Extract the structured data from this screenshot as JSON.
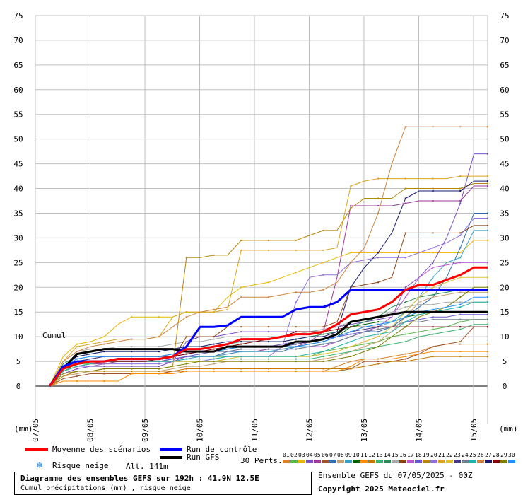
{
  "chart_data": {
    "type": "line",
    "cumul_label": "Cumul",
    "unit_label": "(mm)",
    "ylim": [
      0,
      75
    ],
    "yticks": [
      0,
      5,
      10,
      15,
      20,
      25,
      30,
      35,
      40,
      45,
      50,
      55,
      60,
      65,
      70,
      75
    ],
    "xlim_days": [
      7,
      15
    ],
    "xticks": [
      "07/05",
      "08/05",
      "09/05",
      "10/05",
      "11/05",
      "12/05",
      "13/05",
      "14/05",
      "15/05"
    ],
    "x_steps_hours": [
      0,
      6,
      12,
      18,
      24,
      30,
      36,
      42,
      48,
      54,
      60,
      66,
      72,
      78,
      84,
      90,
      96,
      102,
      108,
      114,
      120,
      126,
      132,
      138,
      144,
      150,
      156,
      162,
      168,
      174,
      180,
      186,
      192
    ],
    "control_run": [
      0,
      4,
      5,
      5,
      5,
      5.5,
      5.5,
      5.5,
      5.5,
      6,
      8,
      12,
      12,
      12.3,
      14,
      14,
      14,
      14,
      15.5,
      16,
      16,
      17,
      19.5,
      19.5,
      19.5,
      19.5,
      19.5,
      19.5,
      19.5,
      19.5,
      19.5,
      19.5,
      19.5
    ],
    "gfs_run": [
      0,
      3.5,
      6.5,
      7,
      7.5,
      7.5,
      7.5,
      7.5,
      7.5,
      7.5,
      7,
      7,
      7,
      8,
      8,
      8,
      8,
      8,
      9,
      9,
      9.5,
      10.5,
      13,
      13.5,
      14,
      14.5,
      15,
      15,
      15,
      15,
      15,
      15,
      15
    ],
    "mean_run": [
      0,
      3.5,
      4.5,
      5,
      5,
      5.5,
      5.5,
      5.5,
      5.5,
      6,
      7.5,
      7.5,
      8,
      8.5,
      9.5,
      9.5,
      9.5,
      10,
      10.5,
      10.5,
      11,
      12.5,
      14.5,
      15,
      15.5,
      17,
      19.5,
      20.5,
      20.5,
      21.5,
      22.5,
      24,
      24
    ],
    "perturbations": [
      {
        "name": "01",
        "color": "#d9822b",
        "values": [
          0,
          2,
          2.5,
          3,
          3,
          3,
          3,
          3,
          3,
          3,
          3,
          3,
          3,
          3,
          3,
          3,
          3,
          3,
          3,
          3,
          3,
          4,
          5,
          5.5,
          5.5,
          6,
          6.5,
          7,
          8,
          8.5,
          8.5,
          8.5,
          8.5
        ]
      },
      {
        "name": "02",
        "color": "#59b84a",
        "values": [
          0,
          3,
          4.5,
          4.5,
          4.5,
          5,
          5,
          5,
          5,
          5.5,
          6,
          6,
          6,
          6,
          6,
          6,
          6,
          6,
          6,
          6,
          7,
          7.5,
          8,
          8.5,
          9,
          10,
          10.5,
          11,
          11.5,
          12,
          13,
          13.5,
          13.5
        ]
      },
      {
        "name": "03",
        "color": "#e6b800",
        "values": [
          0,
          6,
          8.5,
          9,
          10,
          12.5,
          14,
          14,
          14,
          14,
          15,
          15,
          15,
          18,
          20,
          20.5,
          21,
          22,
          23,
          24,
          25,
          26,
          27,
          27,
          27,
          27,
          27,
          27,
          27,
          27,
          27,
          29.5,
          29.5
        ]
      },
      {
        "name": "04",
        "color": "#7a4fc2",
        "values": [
          0,
          2.5,
          3.5,
          4,
          4,
          4,
          4,
          4,
          4,
          5,
          9,
          10,
          10,
          10.5,
          11,
          11,
          11,
          11,
          11,
          11,
          11.5,
          12,
          12.5,
          13,
          13.5,
          14,
          20,
          22,
          25,
          30,
          37,
          47,
          47
        ]
      },
      {
        "name": "05",
        "color": "#9b3a9b",
        "values": [
          0,
          3,
          4,
          4.5,
          4.5,
          5,
          5,
          5,
          5,
          5,
          6,
          6,
          6,
          6.5,
          7,
          7,
          7.5,
          7.5,
          8,
          9,
          11,
          22,
          36.5,
          36.5,
          36.5,
          36.5,
          37,
          37.5,
          37.5,
          37.5,
          37.5,
          40.5,
          40.5
        ]
      },
      {
        "name": "06",
        "color": "#a0522d",
        "values": [
          0,
          1.5,
          2,
          2.5,
          2.5,
          2.5,
          2.5,
          2.5,
          2.5,
          3,
          3,
          3,
          3,
          3,
          3,
          3,
          3,
          3,
          3,
          3,
          3,
          3,
          3.5,
          5,
          5,
          5,
          5.5,
          6.5,
          8,
          8.5,
          9,
          12,
          12
        ]
      },
      {
        "name": "07",
        "color": "#2f6fb0",
        "values": [
          0,
          4,
          5,
          5,
          5,
          5.5,
          5.5,
          5.5,
          5.5,
          5.5,
          6,
          6,
          6,
          7,
          7,
          7,
          7,
          7,
          8,
          8,
          8.5,
          9,
          10,
          11,
          11,
          12,
          14,
          16,
          18,
          22,
          28,
          35,
          35
        ]
      },
      {
        "name": "08",
        "color": "#c8a070",
        "values": [
          0,
          2,
          2.5,
          3,
          3,
          3,
          3,
          3,
          3,
          3.5,
          4,
          4,
          4.5,
          5,
          5,
          5,
          5,
          5,
          5,
          5,
          5.5,
          6,
          7,
          8,
          9,
          11,
          14,
          17,
          18,
          18.5,
          19,
          19,
          19
        ]
      },
      {
        "name": "09",
        "color": "#3aa0c8",
        "values": [
          0,
          3.5,
          5,
          5,
          5,
          5,
          5,
          5,
          5,
          5,
          5.5,
          6,
          6,
          6.5,
          7,
          7,
          7,
          7.5,
          8,
          8,
          8.5,
          9,
          10,
          11,
          12,
          13,
          15,
          18,
          22,
          25,
          26,
          31.5,
          31.5
        ]
      },
      {
        "name": "10",
        "color": "#006400",
        "values": [
          0,
          4,
          5,
          5.5,
          6,
          6,
          6,
          6,
          6,
          6.5,
          7,
          7,
          7,
          7.5,
          8,
          8,
          8,
          8,
          8,
          8.5,
          9,
          10,
          12,
          12.5,
          13,
          13,
          14,
          14.5,
          15,
          15,
          15,
          15,
          15
        ]
      },
      {
        "name": "11",
        "color": "#ff8c00",
        "values": [
          0,
          1,
          1,
          1,
          1,
          1,
          2.5,
          2.5,
          2.5,
          2.5,
          3,
          3,
          3,
          3,
          3,
          3,
          3,
          3,
          3,
          3,
          3,
          3,
          4,
          5.5,
          5.5,
          5.5,
          6,
          6.5,
          7,
          7,
          7,
          7,
          7
        ]
      },
      {
        "name": "12",
        "color": "#c47a00",
        "values": [
          0,
          2,
          3,
          3,
          3,
          3,
          3,
          3,
          3,
          3,
          3.5,
          3.5,
          3.5,
          3.5,
          3.5,
          3.5,
          3.5,
          3.5,
          3.5,
          3.5,
          3.5,
          3.5,
          3.5,
          4,
          4.5,
          5,
          5,
          5.5,
          6,
          6,
          6,
          6,
          6
        ]
      },
      {
        "name": "13",
        "color": "#3cb371",
        "values": [
          0,
          3,
          4,
          4.5,
          5,
          5,
          5,
          5,
          5,
          5,
          5,
          5,
          5,
          5.5,
          5.5,
          5.5,
          5.5,
          5.5,
          5.5,
          5.5,
          6,
          6.5,
          7,
          7.5,
          8,
          8.5,
          9,
          10,
          10.5,
          11,
          11.5,
          12.5,
          12.5
        ]
      },
      {
        "name": "14",
        "color": "#2e8b57",
        "values": [
          0,
          4.5,
          6,
          6.5,
          7,
          7,
          7,
          7,
          7,
          7.5,
          8,
          8,
          8,
          8.5,
          9,
          9,
          9,
          9,
          9.5,
          10,
          10.5,
          11,
          12,
          13,
          14,
          16,
          17,
          18,
          18.5,
          19,
          19.5,
          19.5,
          19.5
        ]
      },
      {
        "name": "15",
        "color": "#a9a9a9",
        "values": [
          0,
          5,
          7,
          7.5,
          7.5,
          8,
          8,
          8,
          8,
          8.5,
          9,
          9,
          9.5,
          10,
          10,
          10,
          10,
          10,
          10.5,
          11,
          11.5,
          12,
          13,
          13.5,
          14,
          15,
          16,
          16.5,
          16.5,
          17,
          17,
          17,
          17
        ]
      },
      {
        "name": "16",
        "color": "#8b4513",
        "values": [
          0,
          3,
          4,
          4.5,
          5,
          5,
          5,
          5,
          5,
          5.5,
          10,
          10,
          10,
          12,
          12,
          12,
          12,
          12,
          12,
          12,
          12,
          13,
          20,
          20.5,
          21,
          22,
          31,
          31,
          31,
          31,
          31,
          32.5,
          32.5
        ]
      },
      {
        "name": "17",
        "color": "#ba55d3",
        "values": [
          0,
          4,
          5,
          5.5,
          6,
          6,
          6,
          6,
          6,
          6,
          6.5,
          7,
          7,
          7,
          7.5,
          7.5,
          7.5,
          7.5,
          7.5,
          8,
          8,
          9,
          10,
          11,
          12,
          14,
          18,
          22,
          24,
          24.5,
          25,
          25,
          25
        ]
      },
      {
        "name": "18",
        "color": "#6a5acd",
        "values": [
          0,
          3.5,
          4.5,
          5,
          5,
          5,
          5,
          5,
          5,
          5.5,
          6,
          6.5,
          7,
          7.5,
          8,
          8,
          8,
          8.5,
          9,
          9,
          9.5,
          10,
          10.5,
          11,
          11.5,
          12,
          13,
          13.5,
          14,
          14,
          14.5,
          14.5,
          14.5
        ]
      },
      {
        "name": "19",
        "color": "#b8860b",
        "values": [
          0,
          2,
          3,
          3,
          3.5,
          3.5,
          3.5,
          3.5,
          3.5,
          4,
          26,
          26,
          26.5,
          26.5,
          29.5,
          29.5,
          29.5,
          29.5,
          29.5,
          30.5,
          31.5,
          31.5,
          36,
          38,
          38,
          38,
          40,
          40,
          40,
          40,
          40,
          41,
          41
        ]
      },
      {
        "name": "20",
        "color": "#9370db",
        "values": [
          0,
          3,
          4,
          4,
          4.5,
          4.5,
          4.5,
          4.5,
          4.5,
          5,
          5,
          5,
          5.5,
          6,
          6,
          6,
          6,
          8,
          17,
          22,
          22.5,
          22.5,
          25,
          25.5,
          26,
          26,
          26,
          27,
          28,
          29,
          30.5,
          34,
          34
        ]
      },
      {
        "name": "21",
        "color": "#daa520",
        "values": [
          0,
          5,
          8,
          8.5,
          9,
          9.5,
          9.5,
          9.5,
          10,
          14,
          15,
          15,
          15,
          15.5,
          27.5,
          27.5,
          27.5,
          27.5,
          27.5,
          27.5,
          27.5,
          28,
          40.5,
          41.5,
          42,
          42,
          42,
          42,
          42,
          42,
          42.5,
          42.5,
          42.5
        ]
      },
      {
        "name": "22",
        "color": "#e0c030",
        "values": [
          0,
          3,
          4,
          4.5,
          5,
          5,
          5,
          5,
          5,
          5,
          5,
          5,
          5,
          5.5,
          6,
          6,
          6,
          6,
          6,
          6,
          6.5,
          7,
          8,
          9,
          10,
          12,
          15,
          18,
          20,
          21,
          22,
          22,
          22
        ]
      },
      {
        "name": "23",
        "color": "#483d8b",
        "values": [
          0,
          3.5,
          5,
          5.5,
          6,
          6,
          6,
          6,
          6,
          6,
          6.5,
          7,
          7,
          7.5,
          8,
          8,
          8,
          8,
          8.5,
          9,
          9.5,
          10,
          11,
          11.5,
          12,
          12,
          12,
          12,
          12,
          12,
          12,
          12,
          12
        ]
      },
      {
        "name": "24",
        "color": "#708090",
        "values": [
          0,
          4,
          5.5,
          6,
          6,
          6,
          6,
          6,
          6,
          6.5,
          7,
          7,
          7,
          7,
          7.5,
          7.5,
          7.5,
          7.5,
          7.5,
          8,
          8.5,
          9,
          10,
          11,
          11.5,
          12,
          13,
          13,
          13.5,
          13.5,
          13.5,
          13.5,
          13.5
        ]
      },
      {
        "name": "25",
        "color": "#20b2aa",
        "values": [
          0,
          3,
          4,
          4.5,
          5,
          5,
          5,
          5,
          5,
          5,
          5.5,
          5.5,
          5.5,
          6,
          6,
          6,
          6,
          6,
          6,
          6.5,
          7,
          8,
          9,
          10,
          10.5,
          11,
          13,
          14.5,
          15,
          15.5,
          16,
          17,
          17
        ]
      },
      {
        "name": "26",
        "color": "#cd853f",
        "values": [
          0,
          5,
          7,
          8,
          8.5,
          9,
          9.5,
          9.5,
          10,
          12,
          14,
          15,
          15.5,
          16,
          18,
          18,
          18,
          18.5,
          19,
          19,
          19.5,
          21,
          25,
          28,
          35,
          45,
          52.5,
          52.5,
          52.5,
          52.5,
          52.5,
          52.5,
          52.5
        ]
      },
      {
        "name": "27",
        "color": "#191970",
        "values": [
          0,
          4,
          6,
          6.5,
          7,
          7,
          7,
          7,
          7,
          7.5,
          8,
          8,
          8.5,
          9,
          9,
          9,
          9,
          9,
          9.5,
          10,
          10,
          11,
          20,
          24,
          27,
          31,
          38,
          39.5,
          39.5,
          39.5,
          39.5,
          41.5,
          41.5
        ]
      },
      {
        "name": "28",
        "color": "#800000",
        "values": [
          0,
          3.5,
          4.5,
          5,
          5,
          5,
          5,
          5,
          5.5,
          6,
          6.5,
          7,
          7.5,
          8,
          8.5,
          9,
          9.5,
          10,
          11,
          11,
          11,
          11.5,
          12,
          12,
          12,
          12,
          12,
          12,
          12,
          12,
          12,
          12,
          12
        ]
      },
      {
        "name": "29",
        "color": "#808000",
        "values": [
          0,
          2.5,
          3,
          3,
          3.5,
          3.5,
          3.5,
          3.5,
          3.5,
          4,
          4.5,
          5,
          5,
          5,
          5,
          5,
          5,
          5,
          5,
          5,
          5,
          5.5,
          6,
          7,
          8,
          10,
          12,
          14,
          15,
          16,
          18,
          20,
          20
        ]
      },
      {
        "name": "30",
        "color": "#1e90ff",
        "values": [
          0,
          4,
          5.5,
          6,
          6,
          6,
          6,
          6,
          6,
          6.5,
          7,
          7,
          7,
          7.5,
          8,
          8,
          8,
          8,
          8,
          8.5,
          9,
          10,
          11,
          12,
          12.5,
          13,
          14,
          15,
          15.5,
          16,
          16.5,
          18,
          18
        ]
      }
    ],
    "colors": {
      "mean": "#ff0000",
      "control": "#0000ff",
      "gfs": "#000000",
      "grid": "#c0c0c0",
      "zero_line": "#808080",
      "snow_icon": "#1e90ff"
    }
  },
  "legend": {
    "mean_label": "Moyenne des scénarios",
    "control_label": "Run de contrôle",
    "gfs_label": "Run GFS",
    "snow_label": "Risque neige",
    "altitude": "Alt. 141m",
    "perts_label": "30 Perts.",
    "pert_numbers": [
      "01",
      "02",
      "03",
      "04",
      "05",
      "06",
      "07",
      "08",
      "09",
      "10",
      "11",
      "12",
      "13",
      "14",
      "15",
      "16",
      "17",
      "18",
      "19",
      "20",
      "21",
      "22",
      "23",
      "24",
      "25",
      "26",
      "27",
      "28",
      "29",
      "30"
    ]
  },
  "info": {
    "title": "Diagramme des ensembles GEFS sur 192h : 41.9N 12.5E",
    "subtitle": "Cumul précipitations (mm) , risque neige",
    "ensemble_run": "Ensemble GEFS du 07/05/2025 - 00Z",
    "copyright": "Copyright 2025 Meteociel.fr"
  }
}
